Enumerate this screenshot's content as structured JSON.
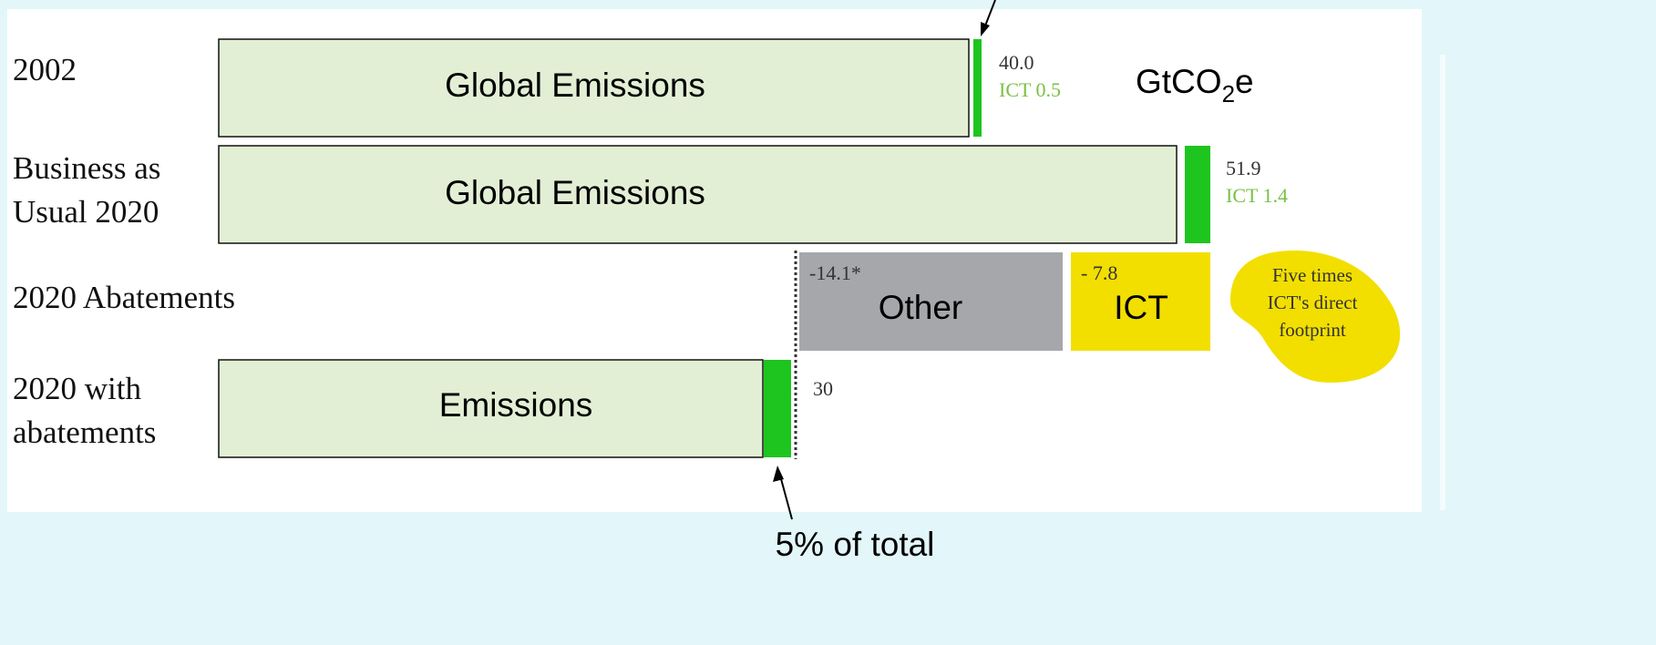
{
  "rows": [
    {
      "label": [
        "2002"
      ],
      "bar": "Global Emissions",
      "total": "40.0",
      "ict": "ICT 0.5"
    },
    {
      "label": [
        "Business as",
        "Usual 2020"
      ],
      "bar": "Global Emissions",
      "total": "51.9",
      "ict": "ICT 1.4"
    },
    {
      "label": [
        "2020 Abatements"
      ],
      "other_value": "-14.1*",
      "other": "Other",
      "ict_value": "- 7.8",
      "ict": "ICT"
    },
    {
      "label": [
        "2020 with",
        "abatements"
      ],
      "bar": "Emissions",
      "total": "30"
    }
  ],
  "unit": {
    "base": "GtCO",
    "sub": "2",
    "suffix": "e"
  },
  "callout": [
    "Five times",
    "ICT's direct",
    "footprint"
  ],
  "note": "5% of total"
}
